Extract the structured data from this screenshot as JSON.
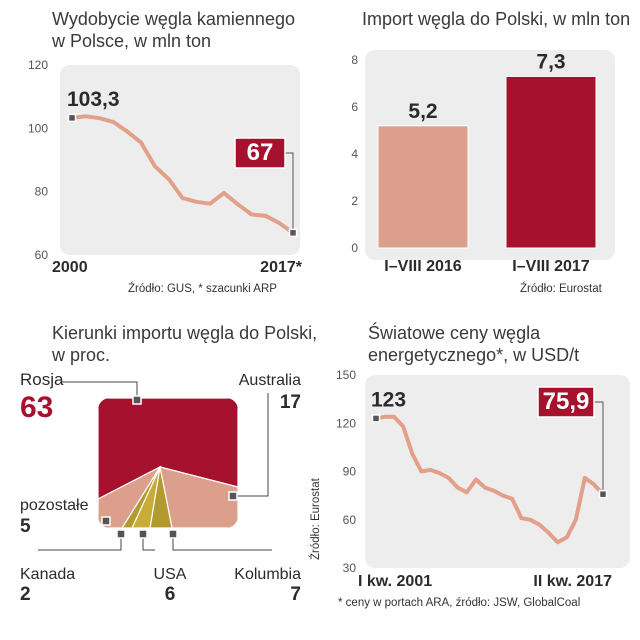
{
  "colors": {
    "line": "#e2a08a",
    "crimson": "#a6112e",
    "salmon": "#dc9f8b",
    "olive": "#b39a2e",
    "olive_light": "#c9ab3a",
    "panel_bg": "#ededed",
    "tick": "#555555"
  },
  "chart_data": [
    {
      "type": "line",
      "title": "Wydobycie węgla kamiennego w Polsce, w mln ton",
      "title_lines": [
        "Wydobycie węgla kamiennego",
        "w Polsce, w mln ton"
      ],
      "x_start_label": "2000",
      "x_end_label": "2017*",
      "ylim": [
        60,
        120
      ],
      "yticks": [
        "120",
        "100",
        "80",
        "60"
      ],
      "series": [
        {
          "values": [
            103.3,
            103.8,
            103.2,
            102.0,
            99.0,
            95.5,
            88.0,
            84.0,
            78.0,
            76.8,
            76.2,
            79.6,
            76.0,
            72.8,
            72.4,
            70.1,
            67.0
          ]
        }
      ],
      "first_label": "103,3",
      "last_label": "67",
      "source": "Źródło: GUS, * szacunki ARP"
    },
    {
      "type": "bar",
      "title": "Import węgla do Polski, w mln ton",
      "categories": [
        "I–VIII 2016",
        "I–VIII 2017"
      ],
      "values": [
        5.2,
        7.3
      ],
      "value_labels": [
        "5,2",
        "7,3"
      ],
      "ylim": [
        0,
        8
      ],
      "yticks": [
        "8",
        "6",
        "4",
        "2",
        "0"
      ],
      "source": "Źródło: Eurostat"
    },
    {
      "type": "pie",
      "title": "Kierunki importu węgla do Polski, w proc.",
      "title_lines": [
        "Kierunki importu węgla do Polski,",
        "w proc."
      ],
      "slices": [
        {
          "label": "Rosja",
          "value": 63
        },
        {
          "label": "Australia",
          "value": 17
        },
        {
          "label": "Kolumbia",
          "value": 7
        },
        {
          "label": "USA",
          "value": 6
        },
        {
          "label": "Kanada",
          "value": 2
        },
        {
          "label": "pozostałe",
          "value": 5
        }
      ],
      "source": "Źródło: Eurostat"
    },
    {
      "type": "line",
      "title": "Światowe ceny węgla energetycznego*, w USD/t",
      "title_lines": [
        "Światowe ceny węgla",
        "energetycznego*, w USD/t"
      ],
      "x_start_label": "I kw. 2001",
      "x_end_label": "II kw. 2017",
      "ylim": [
        30,
        150
      ],
      "yticks": [
        "150",
        "120",
        "90",
        "60",
        "30"
      ],
      "series": [
        {
          "values": [
            123,
            124,
            124,
            118,
            101,
            90,
            91,
            89,
            86,
            80,
            77,
            85,
            80,
            78,
            75,
            73,
            61,
            60,
            57,
            52,
            46,
            49,
            60,
            86,
            82,
            75.9
          ]
        }
      ],
      "first_label": "123",
      "last_label": "75,9",
      "source": "* ceny w portach ARA, źródło: JSW, GlobalCoal"
    }
  ]
}
